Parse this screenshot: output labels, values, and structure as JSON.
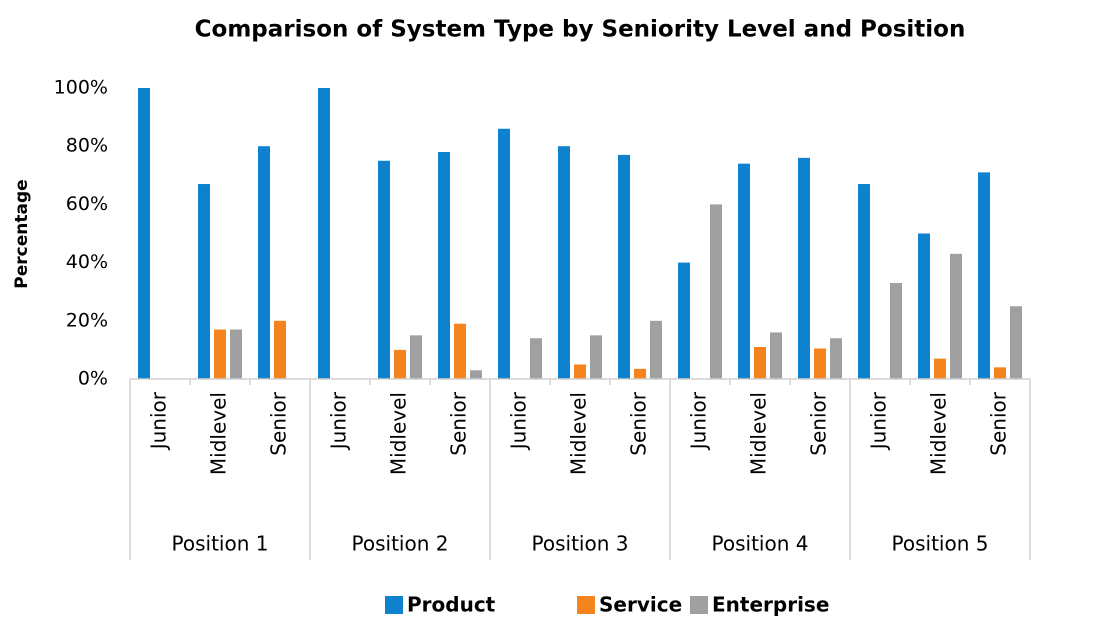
{
  "chart_data": {
    "type": "bar",
    "title": "Comparison of System Type by Seniority Level and Position",
    "ylabel": "Percentage",
    "categories": [
      "Junior",
      "Midlevel",
      "Senior",
      "Junior",
      "Midlevel",
      "Senior",
      "Junior",
      "Midlevel",
      "Senior",
      "Junior",
      "Midlevel",
      "Senior",
      "Junior",
      "Midlevel",
      "Senior"
    ],
    "groups": [
      "Position 1",
      "Position 2",
      "Position 3",
      "Position 4",
      "Position 5"
    ],
    "series": [
      {
        "name": "Product",
        "color": "#0e82cf",
        "values": [
          100,
          67,
          80,
          100,
          75,
          78,
          86,
          80,
          77,
          40,
          74,
          76,
          67,
          50,
          71
        ]
      },
      {
        "name": "Service",
        "color": "#f5841f",
        "values": [
          0,
          17,
          20,
          0,
          10,
          19,
          0,
          5,
          3.5,
          0,
          11,
          10.5,
          0,
          7,
          4
        ]
      },
      {
        "name": "Enterprise",
        "color": "#a0a0a0",
        "values": [
          0,
          17,
          0,
          0,
          15,
          3,
          14,
          15,
          20,
          60,
          16,
          14,
          33,
          43,
          25
        ]
      }
    ],
    "ylim": [
      0,
      100
    ],
    "yticks": [
      {
        "value": 0,
        "label": "0%"
      },
      {
        "value": 20,
        "label": "20%"
      },
      {
        "value": 40,
        "label": "40%"
      },
      {
        "value": 60,
        "label": "60%"
      },
      {
        "value": 80,
        "label": "80%"
      },
      {
        "value": 100,
        "label": "100%"
      }
    ],
    "grid": false,
    "legend": "bottom"
  }
}
